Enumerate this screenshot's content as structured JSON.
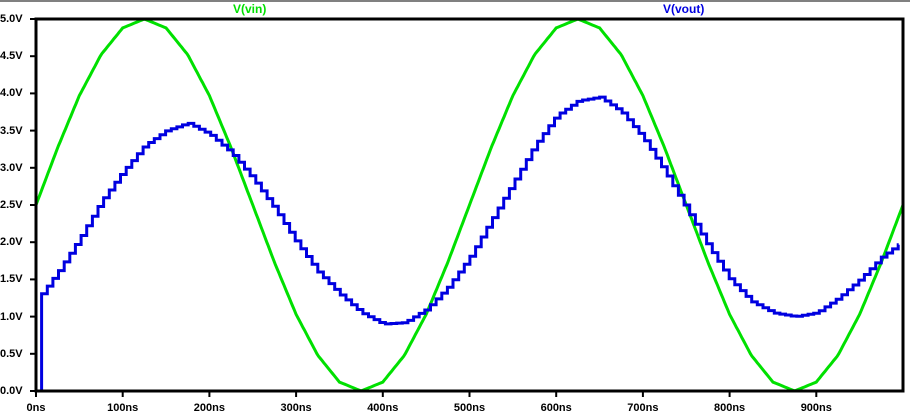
{
  "chart_data": {
    "type": "line",
    "title": "",
    "xlabel": "",
    "ylabel": "",
    "xlim": [
      0,
      1000
    ],
    "ylim": [
      0.0,
      5.0
    ],
    "x_unit": "ns",
    "grid": false,
    "legend_position": "top",
    "x_ticks": [
      "0ns",
      "100ns",
      "200ns",
      "300ns",
      "400ns",
      "500ns",
      "600ns",
      "700ns",
      "800ns",
      "900ns"
    ],
    "y_ticks": [
      "0.0V",
      "0.5V",
      "1.0V",
      "1.5V",
      "2.0V",
      "2.5V",
      "3.0V",
      "3.5V",
      "4.0V",
      "4.5V",
      "5.0V"
    ],
    "series": [
      {
        "name": "V(vin)",
        "color": "#00e000",
        "x": [
          0,
          25,
          50,
          75,
          100,
          125,
          150,
          175,
          200,
          225,
          250,
          275,
          300,
          325,
          350,
          375,
          400,
          425,
          450,
          475,
          500,
          525,
          550,
          575,
          600,
          625,
          650,
          675,
          700,
          725,
          750,
          775,
          800,
          825,
          850,
          875,
          900,
          925,
          950,
          975,
          1000
        ],
        "values": [
          2.5,
          3.27,
          3.97,
          4.52,
          4.88,
          5.0,
          4.88,
          4.52,
          3.97,
          3.27,
          2.5,
          1.73,
          1.03,
          0.48,
          0.12,
          0.0,
          0.12,
          0.48,
          1.03,
          1.73,
          2.5,
          3.27,
          3.97,
          4.52,
          4.88,
          5.0,
          4.88,
          4.52,
          3.97,
          3.27,
          2.5,
          1.73,
          1.03,
          0.48,
          0.12,
          0.0,
          0.12,
          0.48,
          1.03,
          1.73,
          2.5
        ]
      },
      {
        "name": "V(vout)",
        "color": "#0000e0",
        "x": [
          0,
          5,
          6,
          25,
          50,
          75,
          100,
          125,
          150,
          175,
          200,
          225,
          250,
          275,
          300,
          325,
          350,
          375,
          400,
          425,
          450,
          475,
          500,
          525,
          550,
          575,
          600,
          625,
          650,
          675,
          700,
          725,
          750,
          775,
          800,
          825,
          850,
          875,
          900,
          925,
          950,
          975,
          995
        ],
        "values": [
          0.0,
          0.0,
          1.3,
          1.6,
          2.05,
          2.55,
          2.95,
          3.3,
          3.5,
          3.6,
          3.45,
          3.2,
          2.85,
          2.45,
          2.0,
          1.6,
          1.3,
          1.05,
          0.9,
          0.92,
          1.1,
          1.4,
          1.8,
          2.3,
          2.8,
          3.3,
          3.7,
          3.9,
          3.95,
          3.75,
          3.4,
          2.95,
          2.45,
          1.95,
          1.5,
          1.2,
          1.05,
          1.0,
          1.05,
          1.25,
          1.5,
          1.8,
          1.97
        ]
      }
    ]
  },
  "legend": {
    "vin_label": "V(vin)",
    "vout_label": "V(vout)"
  }
}
